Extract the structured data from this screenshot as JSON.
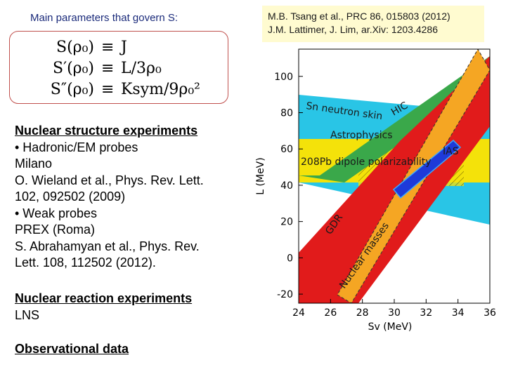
{
  "title": "Main parameters that govern S:",
  "formulas": [
    {
      "lhs": "S(ρ₀)",
      "rhs": "J"
    },
    {
      "lhs": "S′(ρ₀)",
      "rhs": "L/3ρ₀"
    },
    {
      "lhs": "S″(ρ₀)",
      "rhs": "Ksym/9ρ₀²"
    }
  ],
  "formula_eq": "≡",
  "sections": {
    "structure_heading": "Nuclear structure experiments",
    "structure_lines": [
      "•  Hadronic/EM probes",
      "Milano",
      "O. Wieland et al., Phys. Rev. Lett.",
      "102, 092502 (2009)",
      "•  Weak probes",
      "PREX (Roma)",
      "S. Abrahamyan et al., Phys. Rev.",
      "Lett. 108, 112502 (2012)."
    ],
    "reaction_heading": "Nuclear reaction experiments",
    "reaction_lines": [
      "LNS"
    ],
    "observational_heading": "Observational data"
  },
  "references": [
    "M.B. Tsang et al., PRC 86, 015803 (2012)",
    "J.M. Lattimer, J. Lim, ar.Xiv: 1203.4286"
  ],
  "chart_data": {
    "type": "other",
    "xlabel": "Sv (MeV)",
    "ylabel": "L (MeV)",
    "xlim": [
      24,
      36
    ],
    "ylim": [
      -25,
      115
    ],
    "x_ticks": [
      24,
      26,
      28,
      30,
      32,
      34,
      36
    ],
    "y_ticks": [
      -20,
      0,
      20,
      40,
      60,
      80,
      100
    ],
    "band_labels": [
      "Sn neutron skin",
      "HIC",
      "Astrophysics",
      "208Pb dipole polarizability",
      "GDR",
      "Nuclear masses",
      "IAS"
    ],
    "colors": {
      "sn_skin": "#29c5e6",
      "astrophysics": "#f4e20a",
      "hic": "#3aa84a",
      "gdr": "#e11b1b",
      "masses": "#f5a623",
      "ias": "#1e3ad9"
    }
  }
}
